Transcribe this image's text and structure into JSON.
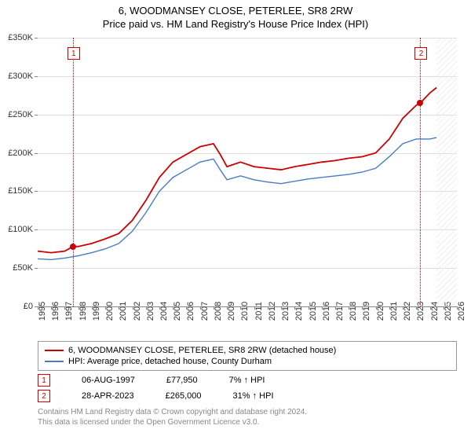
{
  "title": "6, WOODMANSEY CLOSE, PETERLEE, SR8 2RW",
  "subtitle": "Price paid vs. HM Land Registry's House Price Index (HPI)",
  "chart": {
    "ylim": [
      0,
      350000
    ],
    "ytick_step": 50000,
    "ytick_labels": [
      "£0",
      "£50K",
      "£100K",
      "£150K",
      "£200K",
      "£250K",
      "£300K",
      "£350K"
    ],
    "xlim": [
      1995,
      2026
    ],
    "xticks": [
      1995,
      1996,
      1997,
      1998,
      1999,
      2000,
      2001,
      2002,
      2003,
      2004,
      2005,
      2006,
      2007,
      2008,
      2009,
      2010,
      2011,
      2012,
      2013,
      2014,
      2015,
      2016,
      2017,
      2018,
      2019,
      2020,
      2021,
      2022,
      2023,
      2024,
      2025,
      2026
    ],
    "background_color": "#ffffff",
    "grid_color": "#dddddd",
    "series": [
      {
        "name": "property",
        "label": "6, WOODMANSEY CLOSE, PETERLEE, SR8 2RW (detached house)",
        "color": "#cc0000",
        "width": 1.8,
        "data": [
          [
            1995.0,
            72000
          ],
          [
            1996.0,
            70000
          ],
          [
            1997.0,
            72000
          ],
          [
            1997.6,
            77950
          ],
          [
            1998.0,
            78000
          ],
          [
            1999.0,
            82000
          ],
          [
            2000.0,
            88000
          ],
          [
            2001.0,
            95000
          ],
          [
            2002.0,
            112000
          ],
          [
            2003.0,
            138000
          ],
          [
            2004.0,
            168000
          ],
          [
            2005.0,
            188000
          ],
          [
            2006.0,
            198000
          ],
          [
            2007.0,
            208000
          ],
          [
            2008.0,
            212000
          ],
          [
            2008.5,
            198000
          ],
          [
            2009.0,
            182000
          ],
          [
            2010.0,
            188000
          ],
          [
            2011.0,
            182000
          ],
          [
            2012.0,
            180000
          ],
          [
            2013.0,
            178000
          ],
          [
            2014.0,
            182000
          ],
          [
            2015.0,
            185000
          ],
          [
            2016.0,
            188000
          ],
          [
            2017.0,
            190000
          ],
          [
            2018.0,
            193000
          ],
          [
            2019.0,
            195000
          ],
          [
            2020.0,
            200000
          ],
          [
            2021.0,
            218000
          ],
          [
            2022.0,
            245000
          ],
          [
            2023.0,
            262000
          ],
          [
            2023.3,
            265000
          ],
          [
            2024.0,
            278000
          ],
          [
            2024.5,
            285000
          ]
        ]
      },
      {
        "name": "hpi",
        "label": "HPI: Average price, detached house, County Durham",
        "color": "#4a7cc0",
        "width": 1.4,
        "data": [
          [
            1995.0,
            62000
          ],
          [
            1996.0,
            61000
          ],
          [
            1997.0,
            63000
          ],
          [
            1998.0,
            66000
          ],
          [
            1999.0,
            70000
          ],
          [
            2000.0,
            75000
          ],
          [
            2001.0,
            82000
          ],
          [
            2002.0,
            98000
          ],
          [
            2003.0,
            122000
          ],
          [
            2004.0,
            150000
          ],
          [
            2005.0,
            168000
          ],
          [
            2006.0,
            178000
          ],
          [
            2007.0,
            188000
          ],
          [
            2008.0,
            192000
          ],
          [
            2008.5,
            178000
          ],
          [
            2009.0,
            165000
          ],
          [
            2010.0,
            170000
          ],
          [
            2011.0,
            165000
          ],
          [
            2012.0,
            162000
          ],
          [
            2013.0,
            160000
          ],
          [
            2014.0,
            163000
          ],
          [
            2015.0,
            166000
          ],
          [
            2016.0,
            168000
          ],
          [
            2017.0,
            170000
          ],
          [
            2018.0,
            172000
          ],
          [
            2019.0,
            175000
          ],
          [
            2020.0,
            180000
          ],
          [
            2021.0,
            195000
          ],
          [
            2022.0,
            212000
          ],
          [
            2023.0,
            218000
          ],
          [
            2024.0,
            218000
          ],
          [
            2024.5,
            220000
          ]
        ]
      }
    ],
    "markers": [
      {
        "id": "1",
        "x": 1997.6,
        "y": 77950
      },
      {
        "id": "2",
        "x": 2023.3,
        "y": 265000
      }
    ],
    "hatch_after_x": 2024.5
  },
  "sales": [
    {
      "id": "1",
      "date": "06-AUG-1997",
      "price": "£77,950",
      "delta": "7% ↑ HPI"
    },
    {
      "id": "2",
      "date": "28-APR-2023",
      "price": "£265,000",
      "delta": "31% ↑ HPI"
    }
  ],
  "footer": {
    "line1": "Contains HM Land Registry data © Crown copyright and database right 2024.",
    "line2": "This data is licensed under the Open Government Licence v3.0."
  }
}
